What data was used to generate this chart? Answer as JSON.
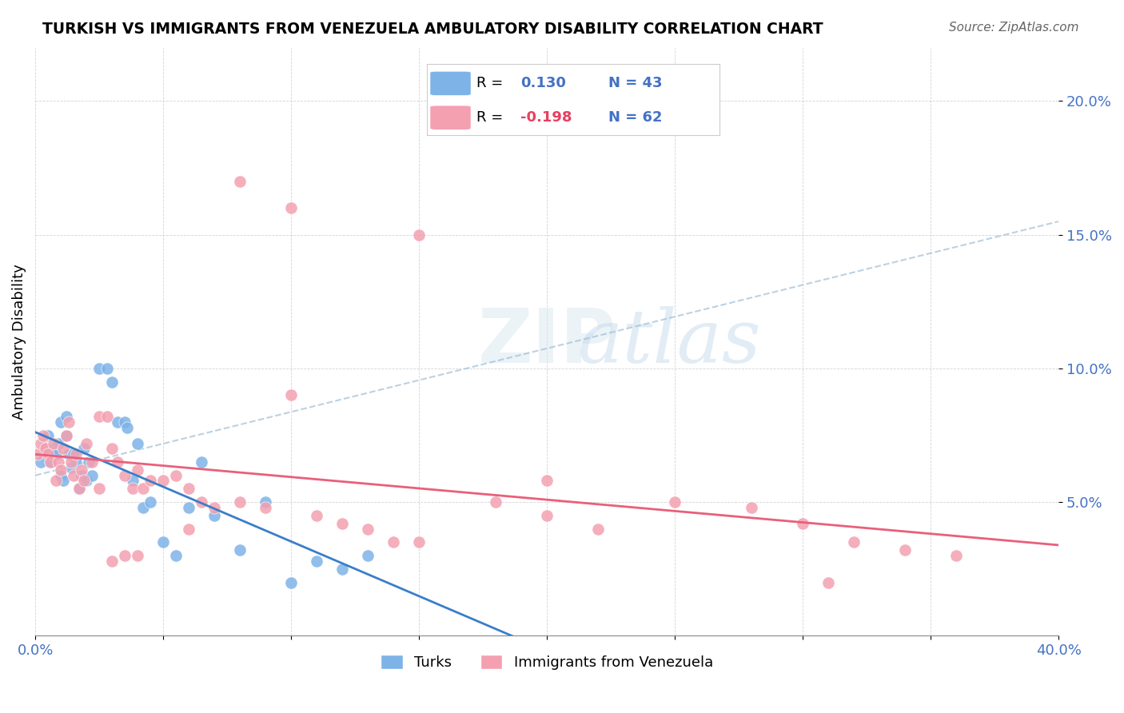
{
  "title": "TURKISH VS IMMIGRANTS FROM VENEZUELA AMBULATORY DISABILITY CORRELATION CHART",
  "source": "Source: ZipAtlas.com",
  "ylabel": "Ambulatory Disability",
  "xlabel": "",
  "xlim": [
    0.0,
    0.4
  ],
  "ylim": [
    0.0,
    0.22
  ],
  "yticks": [
    0.05,
    0.1,
    0.15,
    0.2
  ],
  "ytick_labels": [
    "5.0%",
    "10.0%",
    "15.0%",
    "20.0%"
  ],
  "xticks": [
    0.0,
    0.05,
    0.1,
    0.15,
    0.2,
    0.25,
    0.3,
    0.35,
    0.4
  ],
  "xtick_labels": [
    "0.0%",
    "",
    "",
    "",
    "",
    "",
    "",
    "",
    "40.0%"
  ],
  "turks_R": 0.13,
  "turks_N": 43,
  "venezuela_R": -0.198,
  "venezuela_N": 62,
  "turks_color": "#7EB3E8",
  "venezuela_color": "#F4A0B0",
  "turks_line_color": "#3A7EC8",
  "venezuela_line_color": "#E8607A",
  "trend_line_color": "#A0C0E0",
  "watermark_text": "ZIPatlas",
  "watermark_zip": "ZIP",
  "watermark_atlas": "atlas",
  "legend_R1": "R =",
  "legend_R1_val": "0.130",
  "legend_N1": "N = 43",
  "legend_R2": "R =",
  "legend_R2_val": "-0.198",
  "legend_N2": "N = 62",
  "turks_x": [
    0.002,
    0.004,
    0.005,
    0.006,
    0.007,
    0.008,
    0.009,
    0.01,
    0.01,
    0.011,
    0.012,
    0.012,
    0.013,
    0.014,
    0.015,
    0.016,
    0.017,
    0.018,
    0.019,
    0.02,
    0.021,
    0.022,
    0.025,
    0.028,
    0.03,
    0.032,
    0.035,
    0.036,
    0.038,
    0.04,
    0.042,
    0.045,
    0.05,
    0.055,
    0.06,
    0.065,
    0.07,
    0.08,
    0.09,
    0.1,
    0.11,
    0.12,
    0.13
  ],
  "turks_y": [
    0.065,
    0.07,
    0.075,
    0.065,
    0.07,
    0.068,
    0.072,
    0.06,
    0.08,
    0.058,
    0.082,
    0.075,
    0.068,
    0.063,
    0.068,
    0.065,
    0.055,
    0.06,
    0.07,
    0.058,
    0.065,
    0.06,
    0.1,
    0.1,
    0.095,
    0.08,
    0.08,
    0.078,
    0.058,
    0.072,
    0.048,
    0.05,
    0.035,
    0.03,
    0.048,
    0.065,
    0.045,
    0.032,
    0.05,
    0.02,
    0.028,
    0.025,
    0.03
  ],
  "venezuela_x": [
    0.001,
    0.002,
    0.003,
    0.004,
    0.005,
    0.006,
    0.007,
    0.008,
    0.009,
    0.01,
    0.011,
    0.012,
    0.013,
    0.014,
    0.015,
    0.016,
    0.017,
    0.018,
    0.019,
    0.02,
    0.022,
    0.025,
    0.028,
    0.03,
    0.032,
    0.035,
    0.038,
    0.04,
    0.042,
    0.045,
    0.05,
    0.055,
    0.06,
    0.065,
    0.07,
    0.08,
    0.09,
    0.1,
    0.11,
    0.12,
    0.13,
    0.14,
    0.15,
    0.18,
    0.2,
    0.22,
    0.25,
    0.28,
    0.3,
    0.32,
    0.34,
    0.36,
    0.08,
    0.1,
    0.15,
    0.2,
    0.06,
    0.04,
    0.03,
    0.025,
    0.035,
    0.31
  ],
  "venezuela_y": [
    0.068,
    0.072,
    0.075,
    0.07,
    0.068,
    0.065,
    0.072,
    0.058,
    0.065,
    0.062,
    0.07,
    0.075,
    0.08,
    0.065,
    0.06,
    0.068,
    0.055,
    0.062,
    0.058,
    0.072,
    0.065,
    0.082,
    0.082,
    0.07,
    0.065,
    0.06,
    0.055,
    0.062,
    0.055,
    0.058,
    0.058,
    0.06,
    0.055,
    0.05,
    0.048,
    0.05,
    0.048,
    0.09,
    0.045,
    0.042,
    0.04,
    0.035,
    0.035,
    0.05,
    0.045,
    0.04,
    0.05,
    0.048,
    0.042,
    0.035,
    0.032,
    0.03,
    0.17,
    0.16,
    0.15,
    0.058,
    0.04,
    0.03,
    0.028,
    0.055,
    0.03,
    0.02
  ]
}
